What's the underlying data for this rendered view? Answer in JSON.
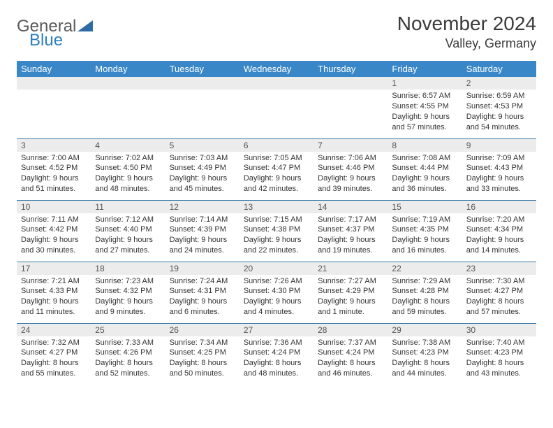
{
  "brand": {
    "part1": "General",
    "part2": "Blue"
  },
  "title": "November 2024",
  "location": "Valley, Germany",
  "colors": {
    "header_bg": "#3a87c7",
    "header_text": "#ffffff",
    "daynum_bg": "#ececec",
    "row_border": "#3a78a8",
    "text": "#333333",
    "brand_gray": "#5a5a5a",
    "brand_blue": "#2d7fbf"
  },
  "typography": {
    "title_fontsize": 28,
    "location_fontsize": 18,
    "weekday_fontsize": 13,
    "daynum_fontsize": 12,
    "cell_fontsize": 11
  },
  "weekdays": [
    "Sunday",
    "Monday",
    "Tuesday",
    "Wednesday",
    "Thursday",
    "Friday",
    "Saturday"
  ],
  "weeks": [
    [
      null,
      null,
      null,
      null,
      null,
      {
        "n": "1",
        "sr": "6:57 AM",
        "ss": "4:55 PM",
        "dl": "9 hours and 57 minutes."
      },
      {
        "n": "2",
        "sr": "6:59 AM",
        "ss": "4:53 PM",
        "dl": "9 hours and 54 minutes."
      }
    ],
    [
      {
        "n": "3",
        "sr": "7:00 AM",
        "ss": "4:52 PM",
        "dl": "9 hours and 51 minutes."
      },
      {
        "n": "4",
        "sr": "7:02 AM",
        "ss": "4:50 PM",
        "dl": "9 hours and 48 minutes."
      },
      {
        "n": "5",
        "sr": "7:03 AM",
        "ss": "4:49 PM",
        "dl": "9 hours and 45 minutes."
      },
      {
        "n": "6",
        "sr": "7:05 AM",
        "ss": "4:47 PM",
        "dl": "9 hours and 42 minutes."
      },
      {
        "n": "7",
        "sr": "7:06 AM",
        "ss": "4:46 PM",
        "dl": "9 hours and 39 minutes."
      },
      {
        "n": "8",
        "sr": "7:08 AM",
        "ss": "4:44 PM",
        "dl": "9 hours and 36 minutes."
      },
      {
        "n": "9",
        "sr": "7:09 AM",
        "ss": "4:43 PM",
        "dl": "9 hours and 33 minutes."
      }
    ],
    [
      {
        "n": "10",
        "sr": "7:11 AM",
        "ss": "4:42 PM",
        "dl": "9 hours and 30 minutes."
      },
      {
        "n": "11",
        "sr": "7:12 AM",
        "ss": "4:40 PM",
        "dl": "9 hours and 27 minutes."
      },
      {
        "n": "12",
        "sr": "7:14 AM",
        "ss": "4:39 PM",
        "dl": "9 hours and 24 minutes."
      },
      {
        "n": "13",
        "sr": "7:15 AM",
        "ss": "4:38 PM",
        "dl": "9 hours and 22 minutes."
      },
      {
        "n": "14",
        "sr": "7:17 AM",
        "ss": "4:37 PM",
        "dl": "9 hours and 19 minutes."
      },
      {
        "n": "15",
        "sr": "7:19 AM",
        "ss": "4:35 PM",
        "dl": "9 hours and 16 minutes."
      },
      {
        "n": "16",
        "sr": "7:20 AM",
        "ss": "4:34 PM",
        "dl": "9 hours and 14 minutes."
      }
    ],
    [
      {
        "n": "17",
        "sr": "7:21 AM",
        "ss": "4:33 PM",
        "dl": "9 hours and 11 minutes."
      },
      {
        "n": "18",
        "sr": "7:23 AM",
        "ss": "4:32 PM",
        "dl": "9 hours and 9 minutes."
      },
      {
        "n": "19",
        "sr": "7:24 AM",
        "ss": "4:31 PM",
        "dl": "9 hours and 6 minutes."
      },
      {
        "n": "20",
        "sr": "7:26 AM",
        "ss": "4:30 PM",
        "dl": "9 hours and 4 minutes."
      },
      {
        "n": "21",
        "sr": "7:27 AM",
        "ss": "4:29 PM",
        "dl": "9 hours and 1 minute."
      },
      {
        "n": "22",
        "sr": "7:29 AM",
        "ss": "4:28 PM",
        "dl": "8 hours and 59 minutes."
      },
      {
        "n": "23",
        "sr": "7:30 AM",
        "ss": "4:27 PM",
        "dl": "8 hours and 57 minutes."
      }
    ],
    [
      {
        "n": "24",
        "sr": "7:32 AM",
        "ss": "4:27 PM",
        "dl": "8 hours and 55 minutes."
      },
      {
        "n": "25",
        "sr": "7:33 AM",
        "ss": "4:26 PM",
        "dl": "8 hours and 52 minutes."
      },
      {
        "n": "26",
        "sr": "7:34 AM",
        "ss": "4:25 PM",
        "dl": "8 hours and 50 minutes."
      },
      {
        "n": "27",
        "sr": "7:36 AM",
        "ss": "4:24 PM",
        "dl": "8 hours and 48 minutes."
      },
      {
        "n": "28",
        "sr": "7:37 AM",
        "ss": "4:24 PM",
        "dl": "8 hours and 46 minutes."
      },
      {
        "n": "29",
        "sr": "7:38 AM",
        "ss": "4:23 PM",
        "dl": "8 hours and 44 minutes."
      },
      {
        "n": "30",
        "sr": "7:40 AM",
        "ss": "4:23 PM",
        "dl": "8 hours and 43 minutes."
      }
    ]
  ],
  "labels": {
    "sunrise": "Sunrise: ",
    "sunset": "Sunset: ",
    "daylight": "Daylight: "
  }
}
